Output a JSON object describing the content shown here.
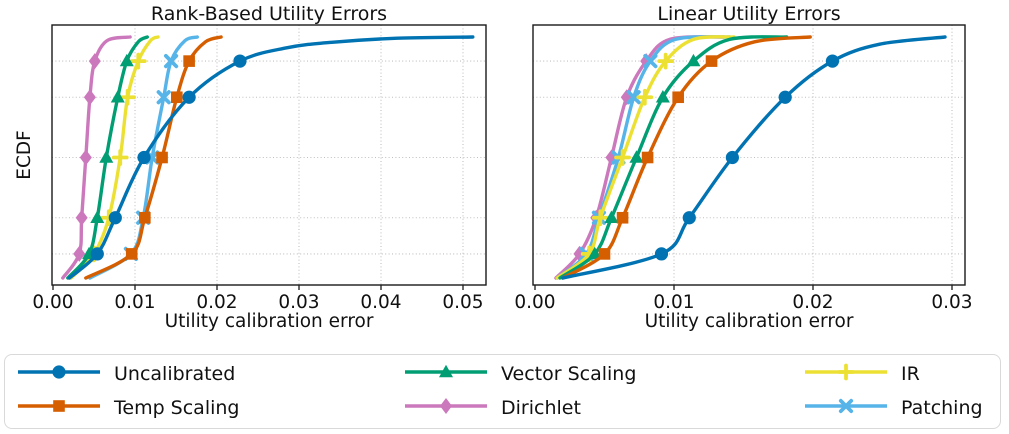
{
  "figure": {
    "background": "#ffffff",
    "grid_color": "#bfbfbf",
    "spine_color": "#1a1a1a"
  },
  "methods": [
    {
      "name": "Uncalibrated",
      "color": "#0173B2",
      "marker": "circle"
    },
    {
      "name": "Temp Scaling",
      "color": "#D55E00",
      "marker": "square"
    },
    {
      "name": "Vector Scaling",
      "color": "#029E73",
      "marker": "triangle"
    },
    {
      "name": "Dirichlet",
      "color": "#CC78BC",
      "marker": "diamond"
    },
    {
      "name": "IR",
      "color": "#ECE133",
      "marker": "plus"
    },
    {
      "name": "Patching",
      "color": "#56B4E9",
      "marker": "x"
    }
  ],
  "chart_data": [
    {
      "type": "line",
      "variant": "ecdf",
      "title": "Rank-Based Utility Errors",
      "xlabel": "Utility calibration error",
      "ylabel": "ECDF",
      "xlim": [
        0.0,
        0.0528
      ],
      "ylim": [
        0.0,
        1.05
      ],
      "xticks": [
        0.0,
        0.01,
        0.02,
        0.03,
        0.04,
        0.05
      ],
      "xtick_labels": [
        "0.00",
        "0.01",
        "0.02",
        "0.03",
        "0.04",
        "0.05"
      ],
      "grid_quantiles": [
        0.1,
        0.25,
        0.5,
        0.75,
        0.9
      ],
      "marker_quantiles": [
        0.1,
        0.25,
        0.5,
        0.75,
        0.9
      ],
      "grid": true,
      "legend_position": "figure-bottom",
      "series": [
        {
          "name": "Uncalibrated",
          "points": [
            [
              0.002,
              0
            ],
            [
              0.0054,
              0.1
            ],
            [
              0.0076,
              0.25
            ],
            [
              0.0111,
              0.5
            ],
            [
              0.0166,
              0.75
            ],
            [
              0.0228,
              0.9
            ],
            [
              0.0285,
              0.955
            ],
            [
              0.034,
              0.978
            ],
            [
              0.042,
              0.995
            ],
            [
              0.0512,
              1.0
            ]
          ]
        },
        {
          "name": "Temp Scaling",
          "points": [
            [
              0.004,
              0
            ],
            [
              0.0096,
              0.1
            ],
            [
              0.0112,
              0.25
            ],
            [
              0.0133,
              0.5
            ],
            [
              0.0151,
              0.75
            ],
            [
              0.0166,
              0.9
            ],
            [
              0.0186,
              0.98
            ],
            [
              0.0205,
              1.0
            ]
          ]
        },
        {
          "name": "Vector Scaling",
          "points": [
            [
              0.0018,
              0
            ],
            [
              0.0044,
              0.1
            ],
            [
              0.0054,
              0.25
            ],
            [
              0.0065,
              0.5
            ],
            [
              0.0079,
              0.75
            ],
            [
              0.009,
              0.9
            ],
            [
              0.0104,
              0.98
            ],
            [
              0.0115,
              1.0
            ]
          ]
        },
        {
          "name": "Dirichlet",
          "points": [
            [
              0.0012,
              0
            ],
            [
              0.0032,
              0.1
            ],
            [
              0.0035,
              0.25
            ],
            [
              0.004,
              0.5
            ],
            [
              0.0045,
              0.75
            ],
            [
              0.0051,
              0.9
            ],
            [
              0.0066,
              0.985
            ],
            [
              0.0094,
              1.0
            ]
          ]
        },
        {
          "name": "IR",
          "points": [
            [
              0.0022,
              0
            ],
            [
              0.005,
              0.1
            ],
            [
              0.0068,
              0.25
            ],
            [
              0.0082,
              0.5
            ],
            [
              0.0091,
              0.75
            ],
            [
              0.0104,
              0.9
            ],
            [
              0.0119,
              0.985
            ],
            [
              0.0128,
              1.0
            ]
          ]
        },
        {
          "name": "Patching",
          "points": [
            [
              0.0045,
              0
            ],
            [
              0.0095,
              0.1
            ],
            [
              0.011,
              0.25
            ],
            [
              0.0121,
              0.5
            ],
            [
              0.0135,
              0.75
            ],
            [
              0.0144,
              0.9
            ],
            [
              0.0161,
              0.985
            ],
            [
              0.0176,
              1.0
            ]
          ]
        }
      ]
    },
    {
      "type": "line",
      "variant": "ecdf",
      "title": "Linear Utility Errors",
      "xlabel": "Utility calibration error",
      "ylabel": "",
      "xlim": [
        0.0,
        0.0309
      ],
      "ylim": [
        0.0,
        1.05
      ],
      "xticks": [
        0.0,
        0.01,
        0.02,
        0.03
      ],
      "xtick_labels": [
        "0.00",
        "0.01",
        "0.02",
        "0.03"
      ],
      "grid_quantiles": [
        0.1,
        0.25,
        0.5,
        0.75,
        0.9
      ],
      "marker_quantiles": [
        0.1,
        0.25,
        0.5,
        0.75,
        0.9
      ],
      "grid": true,
      "legend_position": "figure-bottom",
      "series": [
        {
          "name": "Uncalibrated",
          "points": [
            [
              0.002,
              0
            ],
            [
              0.0091,
              0.1
            ],
            [
              0.0111,
              0.25
            ],
            [
              0.0142,
              0.5
            ],
            [
              0.018,
              0.75
            ],
            [
              0.0214,
              0.9
            ],
            [
              0.0248,
              0.97
            ],
            [
              0.0295,
              1.0
            ]
          ]
        },
        {
          "name": "Temp Scaling",
          "points": [
            [
              0.002,
              0
            ],
            [
              0.005,
              0.1
            ],
            [
              0.0063,
              0.25
            ],
            [
              0.0081,
              0.5
            ],
            [
              0.0103,
              0.75
            ],
            [
              0.0127,
              0.9
            ],
            [
              0.0158,
              0.98
            ],
            [
              0.0198,
              1.0
            ]
          ]
        },
        {
          "name": "Vector Scaling",
          "points": [
            [
              0.0018,
              0
            ],
            [
              0.0043,
              0.1
            ],
            [
              0.0055,
              0.25
            ],
            [
              0.0073,
              0.5
            ],
            [
              0.0092,
              0.75
            ],
            [
              0.0114,
              0.9
            ],
            [
              0.014,
              0.99
            ],
            [
              0.0181,
              1.0
            ]
          ]
        },
        {
          "name": "Dirichlet",
          "points": [
            [
              0.0015,
              0
            ],
            [
              0.0032,
              0.1
            ],
            [
              0.0044,
              0.25
            ],
            [
              0.0055,
              0.5
            ],
            [
              0.0066,
              0.75
            ],
            [
              0.008,
              0.9
            ],
            [
              0.0097,
              0.99
            ],
            [
              0.0136,
              1.0
            ]
          ]
        },
        {
          "name": "IR",
          "points": [
            [
              0.0016,
              0
            ],
            [
              0.0039,
              0.1
            ],
            [
              0.0047,
              0.25
            ],
            [
              0.0063,
              0.5
            ],
            [
              0.0079,
              0.75
            ],
            [
              0.0094,
              0.9
            ],
            [
              0.0114,
              0.99
            ],
            [
              0.0143,
              1.0
            ]
          ]
        },
        {
          "name": "Patching",
          "points": [
            [
              0.0016,
              0
            ],
            [
              0.0037,
              0.1
            ],
            [
              0.0046,
              0.25
            ],
            [
              0.006,
              0.5
            ],
            [
              0.0071,
              0.75
            ],
            [
              0.0083,
              0.9
            ],
            [
              0.0101,
              0.99
            ],
            [
              0.014,
              1.0
            ]
          ]
        }
      ]
    }
  ]
}
